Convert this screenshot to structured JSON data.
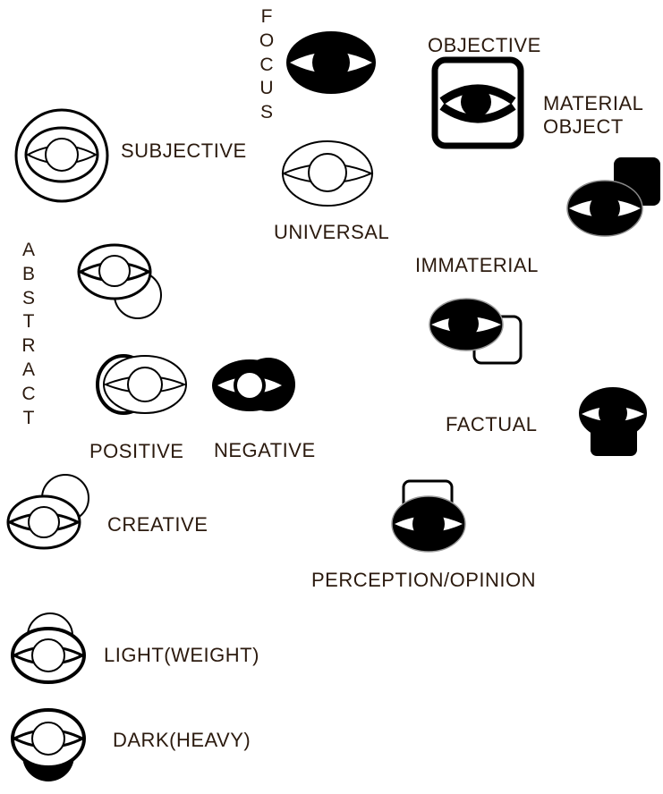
{
  "labels": {
    "focus": "FOCUS",
    "objective": "OBJECTIVE",
    "material_object": [
      "MATERIAL",
      "OBJECT"
    ],
    "subjective": "SUBJECTIVE",
    "universal": "UNIVERSAL",
    "abstract": "ABSTRACT",
    "immaterial": "IMMATERIAL",
    "positive": "POSITIVE",
    "negative": "NEGATIVE",
    "factual": "FACTUAL",
    "creative": "CREATIVE",
    "perception_opinion": "PERCEPTION/OPINION",
    "light_weight": "LIGHT(WEIGHT)",
    "dark_heavy": "DARK(HEAVY)"
  },
  "colors": {
    "ink": "#000000",
    "label_text": "#2b1a0e",
    "background": "#ffffff"
  }
}
